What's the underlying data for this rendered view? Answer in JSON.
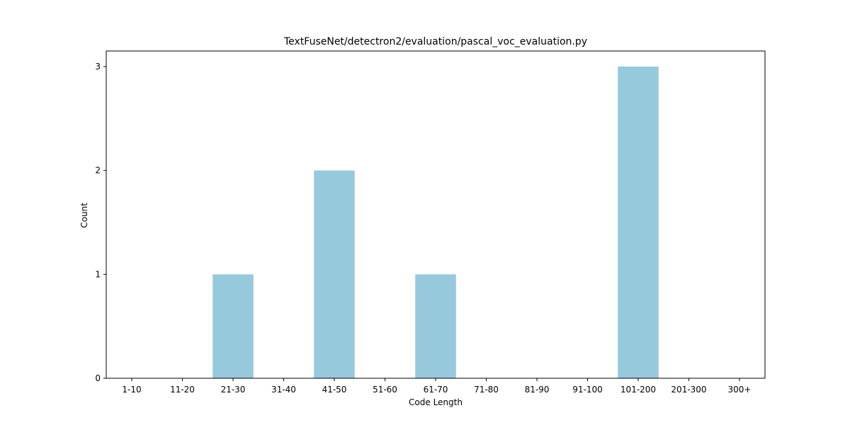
{
  "chart_data": {
    "type": "bar",
    "title": "TextFuseNet/detectron2/evaluation/pascal_voc_evaluation.py",
    "xlabel": "Code Length",
    "ylabel": "Count",
    "categories": [
      "1-10",
      "11-20",
      "21-30",
      "31-40",
      "41-50",
      "51-60",
      "61-70",
      "71-80",
      "81-90",
      "91-100",
      "101-200",
      "201-300",
      "300+"
    ],
    "values": [
      0,
      0,
      1,
      0,
      2,
      0,
      1,
      0,
      0,
      0,
      3,
      0,
      0
    ],
    "ylim": [
      0,
      3.15
    ],
    "yticks": [
      0,
      1,
      2,
      3
    ],
    "grid": false,
    "bar_color": "#96c9dc"
  }
}
